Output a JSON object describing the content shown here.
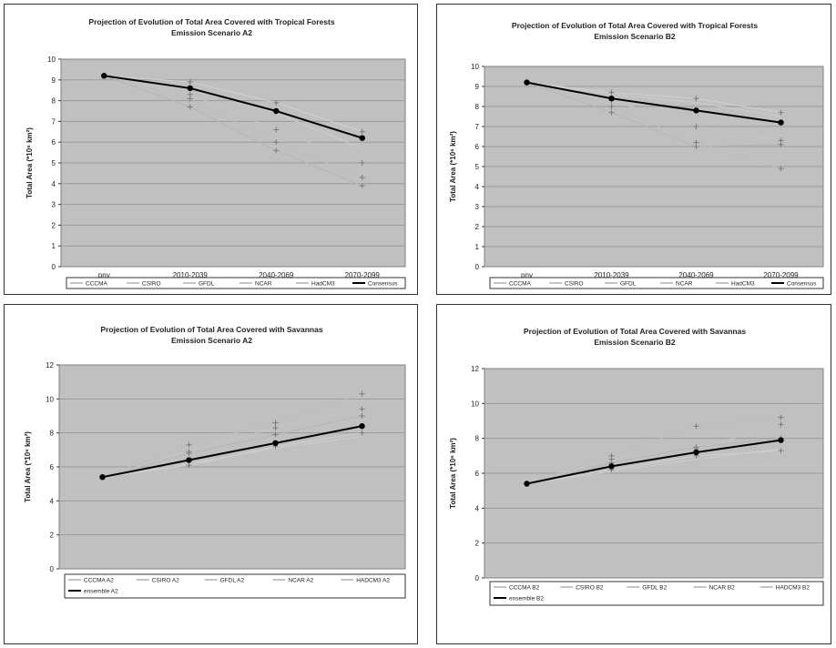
{
  "chart_data": [
    {
      "type": "line",
      "title": [
        "Projection of Evolution of Total Area Covered with Tropical Forests",
        "Emission Scenario A2"
      ],
      "ylabel": "Total Area (*10⁶ km²)",
      "categories": [
        "pnv",
        "2010-2039",
        "2040-2069",
        "2070-2099"
      ],
      "ylim": [
        0,
        10
      ],
      "yticks": [
        0,
        1,
        2,
        3,
        4,
        5,
        6,
        7,
        8,
        9,
        10
      ],
      "grid": true,
      "legend_position": "bottom",
      "legend_cols": 6,
      "series": [
        {
          "name": "CCCMA",
          "values": [
            9.2,
            8.1,
            6.0,
            4.3
          ],
          "color": "#bdbdbd",
          "width": 1,
          "marker": "plus"
        },
        {
          "name": "CSIRO",
          "values": [
            9.2,
            8.3,
            6.6,
            5.0
          ],
          "color": "#c4c4c4",
          "width": 1,
          "marker": "plus"
        },
        {
          "name": "GFDL",
          "values": [
            9.2,
            8.6,
            7.4,
            5.7
          ],
          "color": "#cccccc",
          "width": 1,
          "marker": "none"
        },
        {
          "name": "NCAR",
          "values": [
            9.2,
            7.7,
            5.6,
            3.9
          ],
          "color": "#b5b5b5",
          "width": 1,
          "marker": "plus"
        },
        {
          "name": "HadCM3",
          "values": [
            9.2,
            8.9,
            7.9,
            6.5
          ],
          "color": "#d0d0d0",
          "width": 1,
          "marker": "plus"
        },
        {
          "name": "Consensus",
          "values": [
            9.2,
            8.6,
            7.5,
            6.2
          ],
          "color": "#000000",
          "width": 2,
          "marker": "dot"
        }
      ]
    },
    {
      "type": "line",
      "title": [
        "Projection of Evolution of Total Area Covered with Tropical Forests",
        "Emission Scenario B2"
      ],
      "ylabel": "Total Area (*10⁶ km²)",
      "categories": [
        "pnv",
        "2010-2039",
        "2040-2069",
        "2070-2099"
      ],
      "ylim": [
        0,
        10
      ],
      "yticks": [
        0,
        1,
        2,
        3,
        4,
        5,
        6,
        7,
        8,
        9,
        10
      ],
      "grid": true,
      "legend_position": "bottom",
      "legend_cols": 6,
      "series": [
        {
          "name": "CCCMA",
          "values": [
            9.2,
            8.0,
            6.2,
            4.9
          ],
          "color": "#bdbdbd",
          "width": 1,
          "marker": "plus"
        },
        {
          "name": "CSIRO",
          "values": [
            9.2,
            8.3,
            7.0,
            6.3
          ],
          "color": "#c4c4c4",
          "width": 1,
          "marker": "plus"
        },
        {
          "name": "GFDL",
          "values": [
            9.2,
            8.6,
            8.2,
            7.5
          ],
          "color": "#cccccc",
          "width": 1,
          "marker": "none"
        },
        {
          "name": "NCAR",
          "values": [
            9.2,
            7.7,
            6.0,
            6.1
          ],
          "color": "#b5b5b5",
          "width": 1,
          "marker": "plus"
        },
        {
          "name": "HadCM3",
          "values": [
            9.2,
            8.7,
            8.4,
            7.7
          ],
          "color": "#d0d0d0",
          "width": 1,
          "marker": "plus"
        },
        {
          "name": "Consensus",
          "values": [
            9.2,
            8.4,
            7.8,
            7.2
          ],
          "color": "#000000",
          "width": 2,
          "marker": "dot"
        }
      ]
    },
    {
      "type": "line",
      "title": [
        "Projection of Evolution of Total Area Covered with Savannas",
        "Emission Scenario A2"
      ],
      "ylabel": "Total Area (*10⁶ km²)",
      "categories": [
        "pnv",
        "2010-2039",
        "2040-2069",
        "2070-2099"
      ],
      "ylim": [
        0,
        12
      ],
      "yticks": [
        0,
        2,
        4,
        6,
        8,
        10,
        12
      ],
      "grid": true,
      "legend_position": "bottom",
      "legend_cols": 5,
      "series": [
        {
          "name": "CCCMA A2",
          "values": [
            5.4,
            7.3,
            8.6,
            10.3
          ],
          "color": "#bdbdbd",
          "width": 1,
          "marker": "plus"
        },
        {
          "name": "CSIRO A2",
          "values": [
            5.4,
            6.9,
            8.3,
            9.4
          ],
          "color": "#c4c4c4",
          "width": 1,
          "marker": "plus"
        },
        {
          "name": "GFDL A2",
          "values": [
            5.4,
            6.2,
            7.1,
            7.8
          ],
          "color": "#cccccc",
          "width": 1,
          "marker": "none"
        },
        {
          "name": "NCAR A2",
          "values": [
            5.4,
            6.8,
            7.9,
            9.0
          ],
          "color": "#b5b5b5",
          "width": 1,
          "marker": "plus"
        },
        {
          "name": "HADCM3 A2",
          "values": [
            5.4,
            6.1,
            7.2,
            8.0
          ],
          "color": "#d0d0d0",
          "width": 1,
          "marker": "plus"
        },
        {
          "name": "ensemble A2",
          "values": [
            5.4,
            6.4,
            7.4,
            8.4
          ],
          "color": "#000000",
          "width": 2,
          "marker": "dot"
        }
      ]
    },
    {
      "type": "line",
      "title": [
        "Projection of Evolution of Total Area Covered with Savannas",
        "Emission Scenario B2"
      ],
      "ylabel": "Total Area (*10⁶ km²)",
      "categories": [
        "pnv",
        "2010-2039",
        "2040-2069",
        "2070-2099"
      ],
      "ylim": [
        0,
        12
      ],
      "yticks": [
        0,
        2,
        4,
        6,
        8,
        10,
        12
      ],
      "grid": true,
      "legend_position": "bottom",
      "legend_cols": 5,
      "series": [
        {
          "name": "CCCMA B2",
          "values": [
            5.4,
            7.0,
            8.7,
            9.2
          ],
          "color": "#bdbdbd",
          "width": 1,
          "marker": "plus"
        },
        {
          "name": "CSIRO B2",
          "values": [
            5.4,
            6.8,
            7.4,
            8.8
          ],
          "color": "#c4c4c4",
          "width": 1,
          "marker": "plus"
        },
        {
          "name": "GFDL B2",
          "values": [
            5.4,
            6.1,
            6.8,
            7.4
          ],
          "color": "#cccccc",
          "width": 1,
          "marker": "none"
        },
        {
          "name": "NCAR B2",
          "values": [
            5.4,
            6.6,
            7.5,
            8.0
          ],
          "color": "#b5b5b5",
          "width": 1,
          "marker": "plus"
        },
        {
          "name": "HADCM3 B2",
          "values": [
            5.4,
            6.2,
            7.0,
            7.3
          ],
          "color": "#d0d0d0",
          "width": 1,
          "marker": "plus"
        },
        {
          "name": "ensemble B2",
          "values": [
            5.4,
            6.4,
            7.2,
            7.9
          ],
          "color": "#000000",
          "width": 2,
          "marker": "dot"
        }
      ]
    }
  ]
}
